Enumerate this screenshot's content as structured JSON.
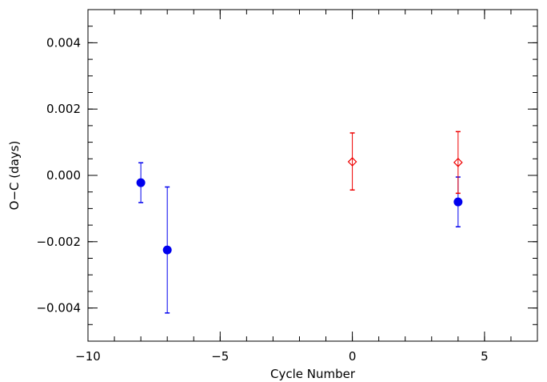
{
  "chart_data": {
    "type": "scatter",
    "title": "",
    "xlabel": "Cycle Number",
    "ylabel": "O−C (days)",
    "xlim": [
      -10,
      7
    ],
    "ylim": [
      -0.005,
      0.005
    ],
    "grid": false,
    "x_ticks": [
      -10,
      -5,
      0,
      5
    ],
    "x_tick_labels": [
      "−10",
      "−5",
      "0",
      "5"
    ],
    "x_minor_step": 1,
    "y_ticks": [
      -0.004,
      -0.002,
      0.0,
      0.002,
      0.004
    ],
    "y_tick_labels": [
      "−0.004",
      "−0.002",
      "0.000",
      "0.002",
      "0.004"
    ],
    "y_minor_step": 0.0005,
    "series": [
      {
        "marker": "filled-circle",
        "color": "#0000ee",
        "points": [
          {
            "x": -8,
            "y": -0.00022,
            "yerr_low": 0.0006,
            "yerr_high": 0.0006
          },
          {
            "x": -7,
            "y": -0.00225,
            "yerr_low": 0.0019,
            "yerr_high": 0.0019
          },
          {
            "x": 4,
            "y": -0.0008,
            "yerr_low": 0.00075,
            "yerr_high": 0.00075
          }
        ]
      },
      {
        "marker": "open-diamond",
        "color": "#ee0000",
        "points": [
          {
            "x": 0,
            "y": 0.00041,
            "yerr_low": 0.00085,
            "yerr_high": 0.00087
          },
          {
            "x": 4,
            "y": 0.00039,
            "yerr_low": 0.00093,
            "yerr_high": 0.00093
          }
        ]
      }
    ]
  }
}
